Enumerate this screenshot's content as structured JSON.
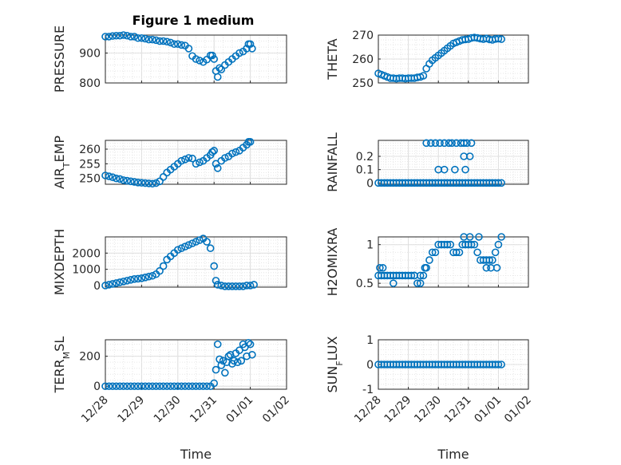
{
  "figure_title": "Figure 1 medium",
  "chart_data": [
    {
      "type": "scatter",
      "ylabel": "PRESSURE",
      "ylabel_sub": "",
      "ylabel_tail": "",
      "yticks": [
        {
          "v": 800,
          "t": "800"
        },
        {
          "v": 900,
          "t": "900"
        }
      ],
      "ylim": [
        800,
        960
      ],
      "xlim": [
        0,
        5
      ],
      "xlabel": "",
      "show_xticklabels": false,
      "grid": true,
      "x": [
        0,
        0.1,
        0.2,
        0.3,
        0.4,
        0.5,
        0.6,
        0.7,
        0.8,
        0.9,
        1.0,
        1.1,
        1.2,
        1.3,
        1.4,
        1.5,
        1.6,
        1.7,
        1.8,
        1.9,
        2.0,
        2.1,
        2.2,
        2.3,
        2.4,
        2.5,
        2.6,
        2.7,
        2.8,
        2.9,
        2.95,
        3.0,
        3.05,
        3.1,
        3.15,
        3.2,
        3.3,
        3.4,
        3.5,
        3.6,
        3.7,
        3.8,
        3.9,
        3.95,
        4.0,
        4.05
      ],
      "y": [
        955,
        955,
        957,
        958,
        958,
        960,
        958,
        955,
        955,
        950,
        950,
        948,
        945,
        945,
        943,
        940,
        940,
        938,
        935,
        930,
        930,
        927,
        925,
        915,
        890,
        880,
        875,
        870,
        878,
        892,
        892,
        880,
        840,
        820,
        850,
        845,
        860,
        870,
        880,
        890,
        900,
        905,
        915,
        930,
        930,
        915
      ]
    },
    {
      "type": "scatter",
      "ylabel": "THETA",
      "ylabel_sub": "",
      "ylabel_tail": "",
      "yticks": [
        {
          "v": 250,
          "t": "250"
        },
        {
          "v": 260,
          "t": "260"
        },
        {
          "v": 270,
          "t": "270"
        }
      ],
      "ylim": [
        250,
        270
      ],
      "xlim": [
        0,
        5
      ],
      "xlabel": "",
      "show_xticklabels": false,
      "grid": true,
      "x": [
        0,
        0.1,
        0.2,
        0.3,
        0.4,
        0.5,
        0.6,
        0.7,
        0.8,
        0.9,
        1.0,
        1.1,
        1.2,
        1.3,
        1.4,
        1.5,
        1.6,
        1.7,
        1.8,
        1.9,
        2.0,
        2.1,
        2.2,
        2.3,
        2.4,
        2.5,
        2.6,
        2.7,
        2.8,
        2.9,
        3.0,
        3.1,
        3.2,
        3.3,
        3.4,
        3.5,
        3.6,
        3.7,
        3.8,
        3.9,
        4.0,
        4.1
      ],
      "y": [
        254,
        253.5,
        253,
        252.5,
        252,
        252,
        251.8,
        252,
        252,
        251.8,
        252,
        252,
        252,
        252.3,
        252.5,
        253,
        256,
        258,
        259.5,
        260.5,
        261.5,
        262.5,
        263.5,
        264.5,
        265.5,
        266.5,
        267,
        267.5,
        268,
        268.2,
        268.3,
        268.8,
        269,
        268.8,
        268.5,
        268.3,
        268.6,
        268.2,
        268,
        268.4,
        268.5,
        268.3
      ]
    },
    {
      "type": "scatter",
      "ylabel": "AIR",
      "ylabel_sub": "T",
      "ylabel_tail": "EMP",
      "yticks": [
        {
          "v": 250,
          "t": "250"
        },
        {
          "v": 255,
          "t": "255"
        },
        {
          "v": 260,
          "t": "260"
        }
      ],
      "ylim": [
        248,
        263
      ],
      "xlim": [
        0,
        5
      ],
      "xlabel": "",
      "show_xticklabels": false,
      "grid": true,
      "x": [
        0,
        0.1,
        0.2,
        0.3,
        0.4,
        0.5,
        0.6,
        0.7,
        0.8,
        0.9,
        1.0,
        1.1,
        1.2,
        1.3,
        1.4,
        1.5,
        1.6,
        1.7,
        1.8,
        1.9,
        2.0,
        2.1,
        2.2,
        2.3,
        2.4,
        2.5,
        2.6,
        2.7,
        2.8,
        2.9,
        2.95,
        3.0,
        3.05,
        3.1,
        3.2,
        3.3,
        3.4,
        3.5,
        3.6,
        3.7,
        3.8,
        3.9,
        3.95,
        4.0
      ],
      "y": [
        251,
        250.7,
        250.4,
        250,
        249.8,
        249.4,
        249.2,
        249,
        248.8,
        248.6,
        248.5,
        248.4,
        248.3,
        248.2,
        248.4,
        249,
        250.5,
        252,
        253,
        254,
        255,
        256,
        256.5,
        257,
        256.8,
        255,
        255.5,
        256,
        257,
        258,
        259,
        259.5,
        255,
        253.5,
        256,
        257,
        257.5,
        258.5,
        259,
        259.5,
        260.5,
        261.5,
        262.5,
        262.5
      ]
    },
    {
      "type": "scatter",
      "ylabel": "RAINFALL",
      "ylabel_sub": "",
      "ylabel_tail": "",
      "yticks": [
        {
          "v": 0,
          "t": "0"
        },
        {
          "v": 0.1,
          "t": "0.1"
        },
        {
          "v": 0.2,
          "t": "0.2"
        }
      ],
      "ylim": [
        -0.01,
        0.32
      ],
      "xlim": [
        0,
        5
      ],
      "xlabel": "",
      "show_xticklabels": false,
      "grid": true,
      "x": [
        0,
        0.1,
        0.2,
        0.3,
        0.4,
        0.5,
        0.6,
        0.7,
        0.8,
        0.9,
        1.0,
        1.1,
        1.2,
        1.3,
        1.4,
        1.5,
        1.6,
        1.7,
        1.8,
        1.9,
        2.0,
        2.1,
        2.2,
        2.3,
        2.4,
        2.5,
        2.6,
        2.7,
        2.8,
        2.9,
        3.0,
        3.1,
        3.2,
        3.3,
        3.4,
        3.5,
        3.6,
        3.7,
        3.8,
        3.9,
        4.0,
        4.1,
        1.6,
        1.75,
        1.9,
        2.05,
        2.2,
        2.35,
        2.45,
        2.6,
        2.75,
        2.85,
        2.95,
        3.1,
        2.0,
        2.2,
        2.55,
        2.85,
        3.05,
        2.9
      ],
      "y": [
        0,
        0,
        0,
        0,
        0,
        0,
        0,
        0,
        0,
        0,
        0,
        0,
        0,
        0,
        0,
        0,
        0,
        0,
        0,
        0,
        0,
        0,
        0,
        0,
        0,
        0,
        0,
        0,
        0,
        0,
        0,
        0,
        0,
        0,
        0,
        0,
        0,
        0,
        0,
        0,
        0,
        0,
        0.3,
        0.3,
        0.3,
        0.3,
        0.3,
        0.3,
        0.3,
        0.3,
        0.3,
        0.3,
        0.3,
        0.3,
        0.1,
        0.1,
        0.1,
        0.2,
        0.2,
        0.1
      ]
    },
    {
      "type": "scatter",
      "ylabel": "MIXDEPTH",
      "ylabel_sub": "",
      "ylabel_tail": "",
      "yticks": [
        {
          "v": 0,
          "t": "0"
        },
        {
          "v": 1000,
          "t": "1000"
        },
        {
          "v": 2000,
          "t": "2000"
        }
      ],
      "ylim": [
        -100,
        3000
      ],
      "xlim": [
        0,
        5
      ],
      "xlabel": "",
      "show_xticklabels": false,
      "grid": true,
      "x": [
        0,
        0.1,
        0.2,
        0.3,
        0.4,
        0.5,
        0.6,
        0.7,
        0.8,
        0.9,
        1.0,
        1.1,
        1.2,
        1.3,
        1.4,
        1.5,
        1.6,
        1.7,
        1.8,
        1.9,
        2.0,
        2.1,
        2.2,
        2.3,
        2.4,
        2.5,
        2.6,
        2.7,
        2.8,
        2.9,
        3.0,
        3.05,
        3.1,
        3.2,
        3.3,
        3.4,
        3.5,
        3.6,
        3.7,
        3.8,
        3.9,
        4.0,
        4.1
      ],
      "y": [
        0,
        50,
        100,
        150,
        200,
        250,
        300,
        350,
        400,
        420,
        450,
        500,
        550,
        600,
        700,
        900,
        1200,
        1600,
        1800,
        2000,
        2200,
        2300,
        2400,
        2500,
        2600,
        2700,
        2800,
        2900,
        2700,
        2300,
        1200,
        300,
        50,
        0,
        -50,
        -50,
        -50,
        -50,
        -50,
        -50,
        0,
        0,
        50
      ]
    },
    {
      "type": "scatter",
      "ylabel": "H2OMIXRA",
      "ylabel_sub": "",
      "ylabel_tail": "",
      "yticks": [
        {
          "v": 0.5,
          "t": "0.5"
        },
        {
          "v": 1,
          "t": "1"
        }
      ],
      "ylim": [
        0.45,
        1.1
      ],
      "xlim": [
        0,
        5
      ],
      "xlabel": "",
      "show_xticklabels": false,
      "grid": true,
      "x": [
        0,
        0.1,
        0.2,
        0.3,
        0.4,
        0.5,
        0.6,
        0.7,
        0.8,
        0.9,
        1.0,
        1.1,
        1.2,
        1.3,
        1.4,
        1.5,
        1.6,
        1.7,
        1.8,
        1.9,
        2.0,
        2.1,
        2.2,
        2.3,
        2.4,
        2.5,
        2.6,
        2.7,
        2.8,
        2.9,
        3.0,
        3.1,
        3.2,
        3.3,
        3.4,
        3.5,
        3.6,
        3.7,
        3.8,
        3.9,
        4.0,
        4.1,
        0.05,
        0.15,
        0.5,
        1.2,
        1.4,
        1.55,
        2.85,
        3.05,
        3.35,
        3.6,
        3.75,
        3.95
      ],
      "y": [
        0.6,
        0.6,
        0.6,
        0.6,
        0.6,
        0.6,
        0.6,
        0.6,
        0.6,
        0.6,
        0.6,
        0.6,
        0.6,
        0.5,
        0.5,
        0.6,
        0.7,
        0.8,
        0.9,
        0.9,
        1,
        1,
        1,
        1,
        1,
        0.9,
        0.9,
        0.9,
        1,
        1,
        1,
        1,
        1,
        0.9,
        0.8,
        0.8,
        0.8,
        0.8,
        0.8,
        0.9,
        1,
        1.1,
        0.7,
        0.7,
        0.5,
        0.6,
        0.6,
        0.7,
        1.1,
        1.1,
        1.1,
        0.7,
        0.7,
        0.7
      ]
    },
    {
      "type": "scatter",
      "ylabel": "TERR",
      "ylabel_sub": "M",
      "ylabel_tail": "SL",
      "yticks": [
        {
          "v": 0,
          "t": "0"
        },
        {
          "v": 200,
          "t": "200"
        }
      ],
      "ylim": [
        -20,
        310
      ],
      "xlim": [
        0,
        5
      ],
      "xlabel": "Time",
      "show_xticklabels": true,
      "grid": true,
      "x": [
        0,
        0.1,
        0.2,
        0.3,
        0.4,
        0.5,
        0.6,
        0.7,
        0.8,
        0.9,
        1.0,
        1.1,
        1.2,
        1.3,
        1.4,
        1.5,
        1.6,
        1.7,
        1.8,
        1.9,
        2.0,
        2.1,
        2.2,
        2.3,
        2.4,
        2.5,
        2.6,
        2.7,
        2.8,
        2.9,
        3.0,
        3.05,
        3.1,
        3.15,
        3.2,
        3.25,
        3.3,
        3.35,
        3.4,
        3.45,
        3.5,
        3.55,
        3.6,
        3.65,
        3.7,
        3.75,
        3.8,
        3.85,
        3.9,
        3.95,
        4.0,
        4.05
      ],
      "y": [
        0,
        0,
        0,
        0,
        0,
        0,
        0,
        0,
        0,
        0,
        0,
        0,
        0,
        0,
        0,
        0,
        0,
        0,
        0,
        0,
        0,
        0,
        0,
        0,
        0,
        0,
        0,
        0,
        0,
        0,
        20,
        110,
        280,
        180,
        140,
        170,
        90,
        160,
        200,
        210,
        150,
        170,
        220,
        160,
        240,
        170,
        280,
        260,
        200,
        290,
        280,
        210
      ]
    },
    {
      "type": "scatter",
      "ylabel": "SUN",
      "ylabel_sub": "F",
      "ylabel_tail": "LUX",
      "yticks": [
        {
          "v": -1,
          "t": "-1"
        },
        {
          "v": 0,
          "t": "0"
        },
        {
          "v": 1,
          "t": "1"
        }
      ],
      "ylim": [
        -1,
        1
      ],
      "xlim": [
        0,
        5
      ],
      "xlabel": "Time",
      "show_xticklabels": true,
      "grid": true,
      "x": [
        0,
        0.1,
        0.2,
        0.3,
        0.4,
        0.5,
        0.6,
        0.7,
        0.8,
        0.9,
        1.0,
        1.1,
        1.2,
        1.3,
        1.4,
        1.5,
        1.6,
        1.7,
        1.8,
        1.9,
        2.0,
        2.1,
        2.2,
        2.3,
        2.4,
        2.5,
        2.6,
        2.7,
        2.8,
        2.9,
        3.0,
        3.1,
        3.2,
        3.3,
        3.4,
        3.5,
        3.6,
        3.7,
        3.8,
        3.9,
        4.0,
        4.1
      ],
      "y": [
        0,
        0,
        0,
        0,
        0,
        0,
        0,
        0,
        0,
        0,
        0,
        0,
        0,
        0,
        0,
        0,
        0,
        0,
        0,
        0,
        0,
        0,
        0,
        0,
        0,
        0,
        0,
        0,
        0,
        0,
        0,
        0,
        0,
        0,
        0,
        0,
        0,
        0,
        0,
        0,
        0,
        0
      ]
    }
  ],
  "xticks": [
    {
      "v": 0,
      "t": "12/28"
    },
    {
      "v": 1,
      "t": "12/29"
    },
    {
      "v": 2,
      "t": "12/30"
    },
    {
      "v": 3,
      "t": "12/31"
    },
    {
      "v": 4,
      "t": "01/01"
    },
    {
      "v": 5,
      "t": "01/02"
    }
  ],
  "colors": {
    "marker": "#0072BD",
    "axis": "#262626",
    "grid": "#C8C8C8"
  }
}
